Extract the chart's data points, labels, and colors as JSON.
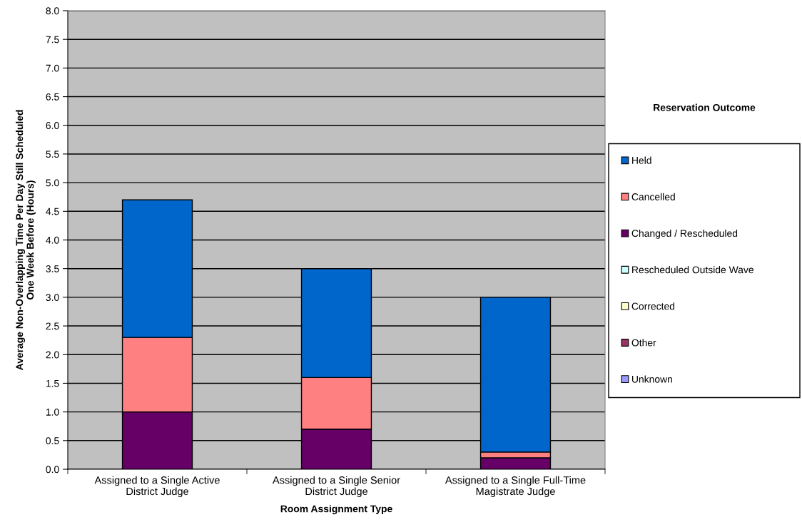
{
  "chart_data": {
    "type": "bar",
    "stacked": true,
    "xlabel": "Room Assignment Type",
    "ylabel": "Average Non-Overlapping Time Per Day Still Scheduled\nOne Week Before (Hours)",
    "legend_title": "Reservation Outcome",
    "categories": [
      "Assigned to a Single Active\nDistrict Judge",
      "Assigned to a Single Senior\nDistrict Judge",
      "Assigned to a Single Full-Time\nMagistrate Judge"
    ],
    "series": [
      {
        "name": "Unknown",
        "color": "#9999ff",
        "values": [
          null,
          null,
          null
        ]
      },
      {
        "name": "Other",
        "color": "#993366",
        "values": [
          null,
          null,
          null
        ]
      },
      {
        "name": "Corrected",
        "color": "#ffffcc",
        "values": [
          null,
          null,
          null
        ]
      },
      {
        "name": "Rescheduled Outside Wave",
        "color": "#ccffff",
        "values": [
          null,
          null,
          null
        ]
      },
      {
        "name": "Changed / Rescheduled",
        "color": "#660066",
        "values": [
          1.0,
          0.7,
          0.2
        ]
      },
      {
        "name": "Cancelled",
        "color": "#ff8080",
        "values": [
          1.3,
          0.9,
          0.1
        ]
      },
      {
        "name": "Held",
        "color": "#0066cc",
        "values": [
          2.4,
          1.9,
          2.7
        ]
      }
    ],
    "ylim": [
      0,
      8
    ],
    "yticks": [
      {
        "value": 0,
        "label": "0.0"
      },
      {
        "value": 0.5,
        "label": "0.5"
      },
      {
        "value": 1,
        "label": "1.0"
      },
      {
        "value": 1.5,
        "label": "1.5"
      },
      {
        "value": 2,
        "label": "2.0"
      },
      {
        "value": 2.5,
        "label": "2.5"
      },
      {
        "value": 3,
        "label": "3.0"
      },
      {
        "value": 3.5,
        "label": "3.5"
      },
      {
        "value": 4,
        "label": "4.0"
      },
      {
        "value": 4.5,
        "label": "4.5"
      },
      {
        "value": 5,
        "label": "5.0"
      },
      {
        "value": 5.5,
        "label": "5.5"
      },
      {
        "value": 6,
        "label": "6.0"
      },
      {
        "value": 6.5,
        "label": "6.5"
      },
      {
        "value": 7,
        "label": "7.0"
      },
      {
        "value": 7.5,
        "label": "7.5"
      },
      {
        "value": 8,
        "label": "8.0"
      }
    ],
    "grid": "y",
    "legend": "right"
  }
}
